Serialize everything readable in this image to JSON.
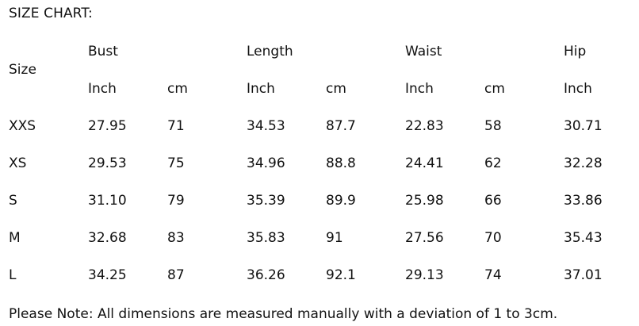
{
  "title": "SIZE CHART:",
  "header": {
    "size_label": "Size",
    "groups": [
      "Bust",
      "Length",
      "Waist",
      "Hip"
    ],
    "units": [
      "Inch",
      "cm",
      "Inch",
      "cm",
      "Inch",
      "cm",
      "Inch"
    ]
  },
  "rows": [
    [
      "XXS",
      "27.95",
      "71",
      "34.53",
      "87.7",
      "22.83",
      "58",
      "30.71"
    ],
    [
      "XS",
      "29.53",
      "75",
      "34.96",
      "88.8",
      "24.41",
      "62",
      "32.28"
    ],
    [
      "S",
      "31.10",
      "79",
      "35.39",
      "89.9",
      "25.98",
      "66",
      "33.86"
    ],
    [
      "M",
      "32.68",
      "83",
      "35.83",
      "91",
      "27.56",
      "70",
      "35.43"
    ],
    [
      "L",
      "34.25",
      "87",
      "36.26",
      "92.1",
      "29.13",
      "74",
      "37.01"
    ]
  ],
  "note": "Please Note: All dimensions are measured manually with a deviation of 1 to 3cm."
}
